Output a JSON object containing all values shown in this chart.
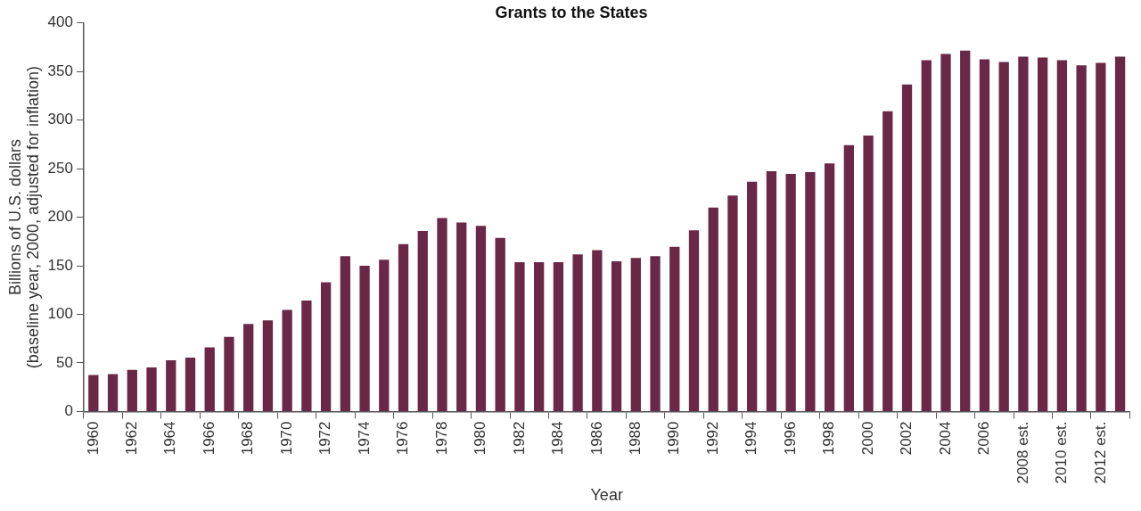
{
  "chart_data": {
    "type": "bar",
    "title": "Grants to the States",
    "xlabel": "Year",
    "ylabel": "Billions of U.S. dollars\n(baseline year, 2000, adjusted for inflation)",
    "categories": [
      "1960",
      null,
      "1962",
      null,
      "1964",
      null,
      "1966",
      null,
      "1968",
      null,
      "1970",
      null,
      "1972",
      null,
      "1974",
      null,
      "1976",
      null,
      "1978",
      null,
      "1980",
      null,
      "1982",
      null,
      "1984",
      null,
      "1986",
      null,
      "1988",
      null,
      "1990",
      null,
      "1992",
      null,
      "1994",
      null,
      "1996",
      null,
      "1998",
      null,
      "2000",
      null,
      "2002",
      null,
      "2004",
      null,
      "2006",
      null,
      "2008 est.",
      null,
      "2010 est.",
      null,
      "2012 est.",
      null
    ],
    "values": [
      37.5,
      38.4,
      42.9,
      45.5,
      52.7,
      55.4,
      66,
      76.8,
      90.2,
      93.8,
      104.5,
      114.3,
      133,
      159.8,
      150,
      156.3,
      172.3,
      185.7,
      199,
      194.6,
      191,
      178.6,
      153.6,
      153.6,
      153.6,
      161.6,
      166,
      154.5,
      158,
      159.8,
      169.6,
      186.6,
      209.8,
      222.3,
      236.6,
      247.3,
      244.6,
      246.4,
      255.4,
      274.1,
      283.9,
      308.9,
      336.6,
      361.6,
      367.9,
      371.4,
      362.5,
      359.8,
      365.2,
      364.3,
      361.6,
      356.3,
      358.9,
      365.2
    ],
    "color": "#6a2846",
    "ylim": [
      0,
      400
    ],
    "yticks": [
      0,
      50,
      100,
      150,
      200,
      250,
      300,
      350,
      400
    ],
    "grid": false,
    "legend": false
  }
}
